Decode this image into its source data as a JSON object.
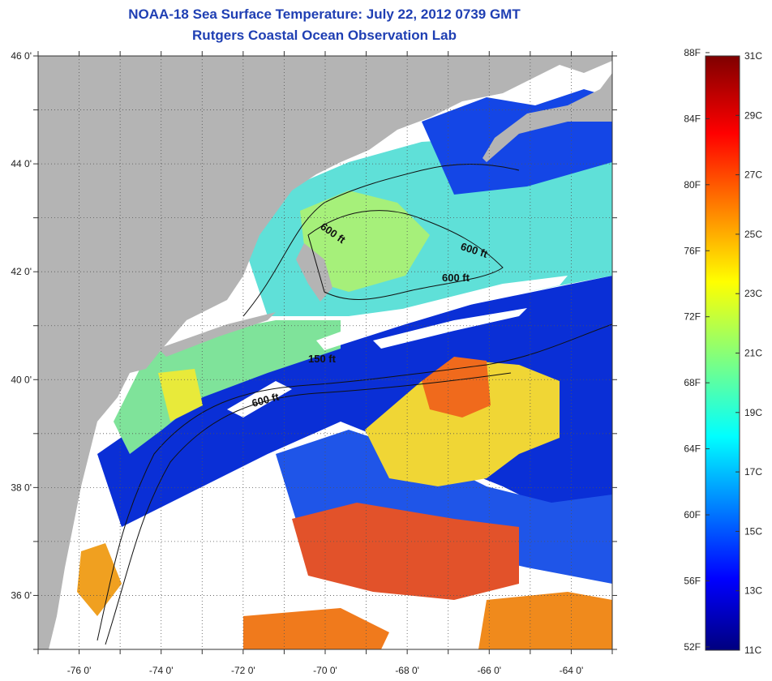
{
  "header": {
    "title": "NOAA-18 Sea Surface Temperature:  July 22, 2012 0739 GMT",
    "subtitle": "Rutgers Coastal Ocean Observation Lab"
  },
  "map": {
    "lat_labels": [
      "46 0'",
      "44 0'",
      "42 0'",
      "40 0'",
      "38 0'",
      "36 0'"
    ],
    "lon_labels": [
      "-76 0'",
      "-74 0'",
      "-72 0'",
      "-70 0'",
      "-68 0'",
      "-66 0'",
      "-64 0'"
    ],
    "lat_range": [
      35,
      46
    ],
    "lon_range": [
      -77,
      -63
    ],
    "isobaths": [
      "600 ft",
      "600 ft",
      "600 ft",
      "150 ft",
      "600 ft"
    ],
    "land_color": "#b4b4b4",
    "cloud_color": "#ffffff"
  },
  "colorbar": {
    "fahrenheit_labels": [
      "88F",
      "84F",
      "80F",
      "76F",
      "72F",
      "68F",
      "64F",
      "60F",
      "56F",
      "52F"
    ],
    "celsius_labels": [
      "31C",
      "29C",
      "27C",
      "25C",
      "23C",
      "21C",
      "19C",
      "17C",
      "15C",
      "13C",
      "11C"
    ],
    "range_c": [
      11,
      31
    ],
    "colormap": "jet"
  }
}
